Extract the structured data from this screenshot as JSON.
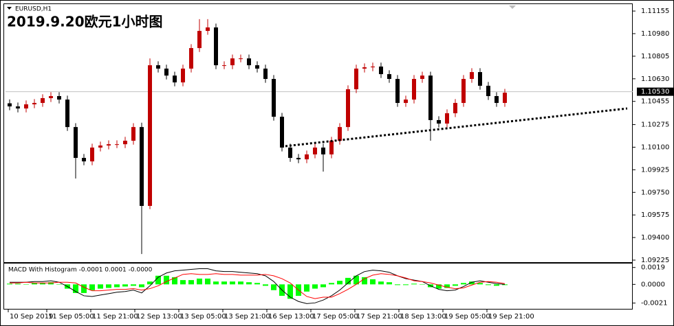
{
  "header": {
    "symbol": "EURUSD,H1",
    "title": "2019.9.20欧元1小时图"
  },
  "chart_data": [
    {
      "type": "candlestick",
      "up_color": "#c00000",
      "down_color": "#000000",
      "xlim": [
        0,
        228
      ],
      "ylim": [
        1.09209,
        1.11198
      ],
      "x": [
        1.5,
        4.5,
        7.5,
        10.5,
        13.5,
        16.5,
        19.5,
        22.5,
        25.5,
        28.5,
        31.5,
        34.5,
        37.5,
        40.5,
        43.5,
        46.5,
        49.5,
        52.5,
        55.5,
        58.5,
        61.5,
        64.5,
        67.5,
        70.5,
        73.5,
        76.5,
        79.5,
        82.5,
        85.5,
        88.5,
        91.5,
        94.5,
        97.5,
        100.5,
        103.5,
        106.5,
        109.5,
        112.5,
        115.5,
        118.5,
        121.5,
        124.5,
        127.5,
        130.5,
        133.5,
        136.5,
        139.5,
        142.5,
        145.5,
        148.5,
        151.5,
        154.5,
        157.5,
        160.5,
        163.5,
        166.5,
        169.5,
        172.5,
        175.5,
        178.5,
        181.5
      ],
      "open": [
        1.1044,
        1.10416,
        1.104,
        1.10432,
        1.10443,
        1.1048,
        1.10496,
        1.10469,
        1.10256,
        1.10017,
        1.0999,
        1.10097,
        1.10113,
        1.10123,
        1.10123,
        1.1015,
        1.10256,
        1.09645,
        1.10735,
        1.10709,
        1.10655,
        1.10602,
        1.10709,
        1.10868,
        1.11001,
        1.11028,
        1.10735,
        1.10735,
        1.10788,
        1.10788,
        1.10735,
        1.10709,
        1.10629,
        1.10336,
        1.10097,
        1.10017,
        1.10006,
        1.10044,
        1.10097,
        1.10044,
        1.1015,
        1.10256,
        1.10549,
        1.10709,
        1.10719,
        1.10725,
        1.10666,
        1.10629,
        1.10443,
        1.10469,
        1.10629,
        1.10655,
        1.1031,
        1.10283,
        1.10363,
        1.10443,
        1.10629,
        1.10682,
        1.10576,
        1.10496,
        1.10443
      ],
      "high": [
        1.1047,
        1.10446,
        1.10462,
        1.10473,
        1.1051,
        1.10526,
        1.10526,
        1.10499,
        1.10286,
        1.10047,
        1.10127,
        1.10143,
        1.10153,
        1.10153,
        1.1018,
        1.10286,
        1.1029,
        1.10788,
        1.10765,
        1.10739,
        1.10685,
        1.10739,
        1.10898,
        1.11092,
        1.11092,
        1.11058,
        1.10765,
        1.10818,
        1.10818,
        1.10818,
        1.10765,
        1.10739,
        1.10659,
        1.10366,
        1.10127,
        1.10047,
        1.10074,
        1.10127,
        1.10127,
        1.1018,
        1.10286,
        1.10579,
        1.10739,
        1.10749,
        1.10755,
        1.10755,
        1.10696,
        1.10659,
        1.10499,
        1.10659,
        1.10685,
        1.10685,
        1.1034,
        1.10393,
        1.10473,
        1.10659,
        1.10712,
        1.10712,
        1.10606,
        1.10526,
        1.10552
      ],
      "low": [
        1.10386,
        1.1037,
        1.1037,
        1.10402,
        1.10413,
        1.1045,
        1.10439,
        1.10226,
        1.09857,
        1.0996,
        1.0996,
        1.10067,
        1.10083,
        1.10093,
        1.10093,
        1.1012,
        1.09272,
        1.0962,
        1.10679,
        1.10625,
        1.10572,
        1.10572,
        1.10679,
        1.10838,
        1.10971,
        1.10705,
        1.10705,
        1.10705,
        1.10758,
        1.10705,
        1.10679,
        1.10599,
        1.10306,
        1.10067,
        1.09987,
        1.09976,
        1.09976,
        1.10014,
        1.09911,
        1.10014,
        1.1012,
        1.10226,
        1.10519,
        1.10679,
        1.10689,
        1.10636,
        1.10599,
        1.10413,
        1.10413,
        1.10439,
        1.10599,
        1.1015,
        1.10253,
        1.10253,
        1.10333,
        1.10413,
        1.10599,
        1.10546,
        1.10466,
        1.10413,
        1.10413
      ],
      "close": [
        1.10416,
        1.104,
        1.10432,
        1.10443,
        1.1048,
        1.10496,
        1.10469,
        1.10256,
        1.10017,
        1.0999,
        1.10097,
        1.10113,
        1.10123,
        1.10123,
        1.1015,
        1.10256,
        1.09645,
        1.10735,
        1.10709,
        1.10655,
        1.10602,
        1.10709,
        1.10868,
        1.11001,
        1.11028,
        1.10735,
        1.10735,
        1.10788,
        1.10788,
        1.10735,
        1.10709,
        1.10629,
        1.10336,
        1.10097,
        1.10017,
        1.10006,
        1.10044,
        1.10097,
        1.10044,
        1.1015,
        1.10256,
        1.10549,
        1.10709,
        1.10719,
        1.10725,
        1.10666,
        1.10629,
        1.10443,
        1.10469,
        1.10629,
        1.10655,
        1.1031,
        1.10283,
        1.10363,
        1.10443,
        1.10629,
        1.10682,
        1.10576,
        1.10496,
        1.10443,
        1.10522
      ],
      "yticks": [
        1.11155,
        {
          "value": 1.1098,
          "label": "1.10980"
        },
        1.10805,
        {
          "value": 1.1063,
          "label": "1.10630"
        },
        1.10455,
        1.10275,
        {
          "value": 1.101,
          "label": "1.10100"
        },
        1.09925,
        {
          "value": 1.0975,
          "label": "1.09750"
        },
        1.09575,
        {
          "value": 1.094,
          "label": "1.09400"
        },
        1.09225
      ],
      "xticks": [
        {
          "value": 1,
          "label": "10 Sep 2019"
        },
        {
          "value": 15,
          "label": "11 Sep 05:00"
        },
        {
          "value": 31,
          "label": "11 Sep 21:00"
        },
        {
          "value": 47,
          "label": "12 Sep 13:00"
        },
        {
          "value": 63,
          "label": "13 Sep 05:00"
        },
        {
          "value": 79,
          "label": "13 Sep 21:00"
        },
        {
          "value": 95,
          "label": "16 Sep 13:00"
        },
        {
          "value": 111,
          "label": "17 Sep 05:00"
        },
        {
          "value": 127,
          "label": "17 Sep 21:00"
        },
        {
          "value": 143,
          "label": "18 Sep 13:00"
        },
        {
          "value": 159,
          "label": "19 Sep 05:00"
        },
        {
          "value": 175,
          "label": "19 Sep 21:00"
        }
      ],
      "current_price": {
        "value": 1.1053,
        "label": "1.10530"
      },
      "trendline": {
        "x": [
          101.75,
          226
        ],
        "y": [
          1.10108,
          1.104
        ]
      }
    },
    {
      "type": "macd",
      "title": "MACD With Histogram -0.0001 0.0001 -0.0000",
      "ylim": [
        -0.00275,
        0.00234
      ],
      "yticks": [
        0.0019,
        {
          "value": 0,
          "label": "0.0000"
        },
        -0.0021
      ],
      "histogram": {
        "color": "#00ff00",
        "values": [
          8e-05,
          8e-05,
          2e-05,
          0.00016,
          0.00016,
          0.00024,
          0,
          -0.00048,
          -0.00097,
          -0.00097,
          -0.00065,
          -0.00048,
          -0.0004,
          -0.00032,
          -0.00024,
          -0.00016,
          -0.00032,
          0.00032,
          0.00097,
          0.00097,
          0.00081,
          0.00048,
          0.00048,
          0.00065,
          0.00065,
          0.00032,
          0.00032,
          0.00032,
          0.00032,
          0.00024,
          0.00016,
          -0.00016,
          -0.00065,
          -0.00129,
          -0.00162,
          -0.00129,
          -0.00081,
          -0.00048,
          -0.00032,
          0.00016,
          0.0004,
          0.00073,
          0.00097,
          0.00081,
          0.00057,
          0.00032,
          0.00024,
          -8e-05,
          -8e-05,
          8e-05,
          0,
          -0.00032,
          -0.00048,
          -0.0004,
          -0.00016,
          0.00016,
          0.00032,
          0.00016,
          -8e-05,
          -0.00016,
          -8e-05
        ]
      },
      "series": [
        {
          "color": "#000000",
          "values": [
            0.00024,
            0.00024,
            0.00024,
            0.00032,
            0.00032,
            0.0004,
            0.00024,
            -0.00024,
            -0.0008,
            -0.00128,
            -0.00136,
            -0.0012,
            -0.00104,
            -0.00088,
            -0.0008,
            -0.00064,
            -0.00096,
            -0.00016,
            0.0008,
            0.00128,
            0.00152,
            0.0016,
            0.00168,
            0.00176,
            0.00176,
            0.00152,
            0.00144,
            0.00144,
            0.00136,
            0.00128,
            0.0012,
            0.00096,
            0.00032,
            -0.00064,
            -0.00144,
            -0.00192,
            -0.00216,
            -0.00208,
            -0.00176,
            -0.00128,
            -0.00064,
            0.00016,
            0.00096,
            0.00144,
            0.0016,
            0.00152,
            0.00136,
            0.00096,
            0.00064,
            0.00048,
            0.00032,
            -0.00016,
            -0.00056,
            -0.00072,
            -0.00064,
            -0.00024,
            0.00024,
            0.0004,
            0.00024,
            8e-05,
            0
          ]
        },
        {
          "color": "#ff0000",
          "values": [
            0.00016,
            0.00016,
            0.00024,
            0.00016,
            0.00016,
            0.00016,
            0.00024,
            0.00024,
            0.00016,
            -0.00032,
            -0.00072,
            -0.00072,
            -0.00064,
            -0.00056,
            -0.00056,
            -0.00048,
            -0.00064,
            -0.00048,
            -0.00016,
            0.00032,
            0.00072,
            0.00112,
            0.0012,
            0.00112,
            0.00112,
            0.0012,
            0.00112,
            0.00112,
            0.00104,
            0.00104,
            0.00104,
            0.00112,
            0.00096,
            0.00064,
            0.00016,
            -0.00064,
            -0.00136,
            -0.0016,
            -0.00144,
            -0.00144,
            -0.00104,
            -0.00056,
            0,
            0.00064,
            0.00104,
            0.0012,
            0.00112,
            0.00096,
            0.00072,
            0.0004,
            0.00032,
            0.00016,
            -8e-05,
            -0.00032,
            -0.00048,
            -0.0004,
            -8e-05,
            0.00024,
            0.00032,
            0.00024,
            8e-05
          ]
        }
      ]
    }
  ]
}
